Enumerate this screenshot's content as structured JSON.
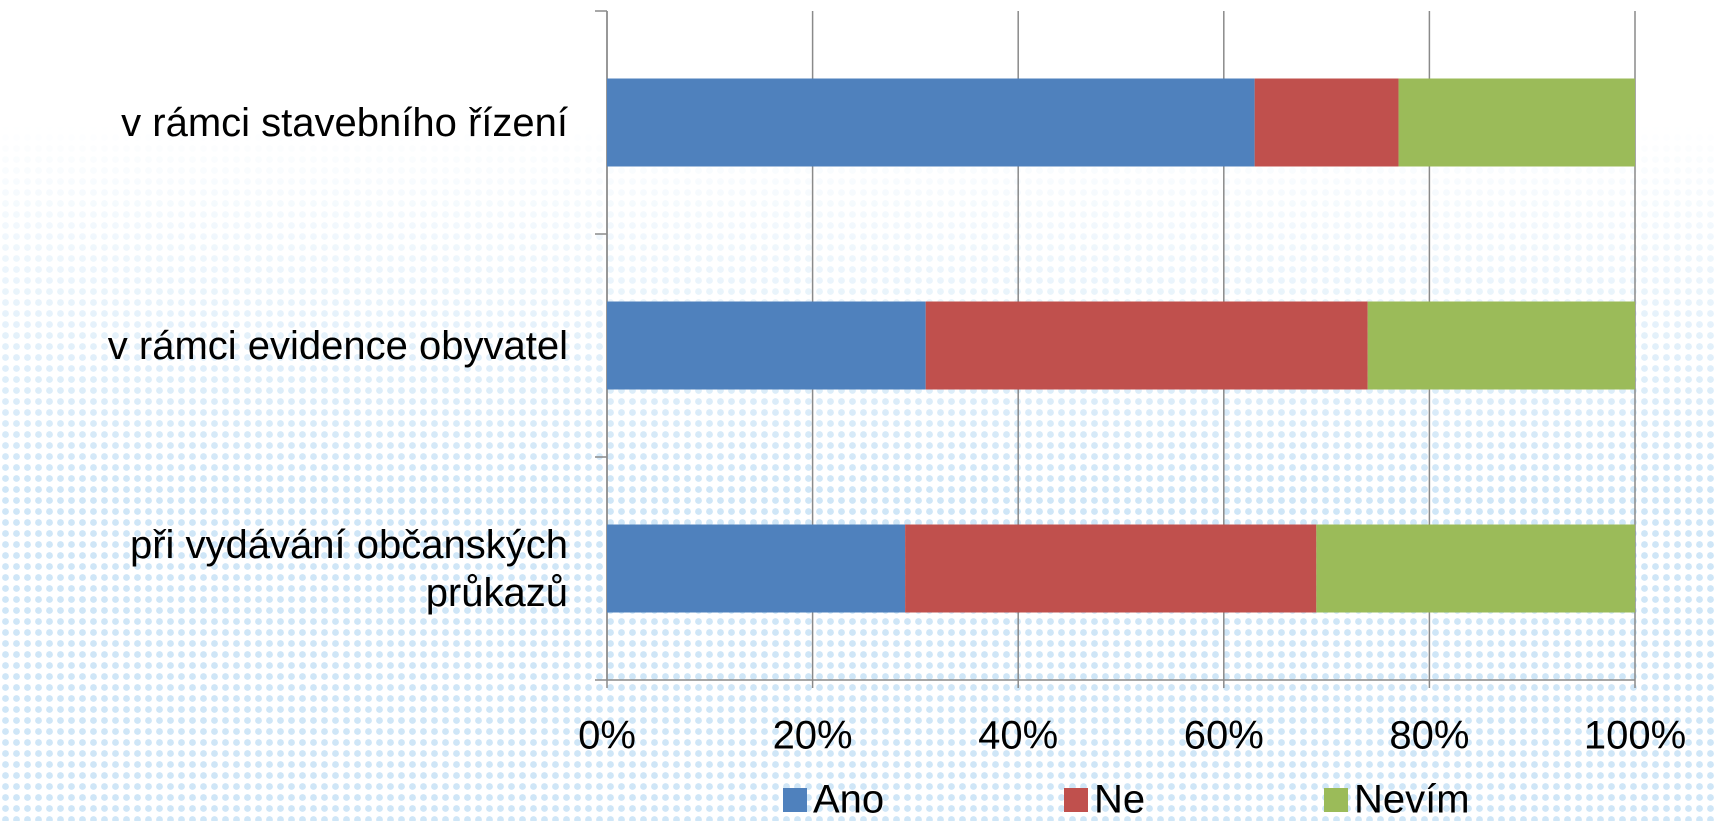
{
  "chart_data": {
    "type": "stacked_bar_horizontal",
    "categories": [
      "v rámci stavebního řízení",
      "v rámci evidence obyvatel",
      "při vydávání občanských průkazů"
    ],
    "series": [
      {
        "name": "Ano",
        "color": "#4f81bd",
        "values": [
          63,
          31,
          29
        ]
      },
      {
        "name": "Ne",
        "color": "#c0504d",
        "values": [
          14,
          43,
          40
        ]
      },
      {
        "name": "Nevím",
        "color": "#9bbb59",
        "values": [
          23,
          26,
          31
        ]
      }
    ],
    "xlim": [
      0,
      100
    ],
    "xticks": [
      {
        "value": 0,
        "label": "0%"
      },
      {
        "value": 20,
        "label": "20%"
      },
      {
        "value": 40,
        "label": "40%"
      },
      {
        "value": 60,
        "label": "60%"
      },
      {
        "value": 80,
        "label": "80%"
      },
      {
        "value": 100,
        "label": "100%"
      }
    ],
    "grid": true,
    "legend": "bottom"
  }
}
